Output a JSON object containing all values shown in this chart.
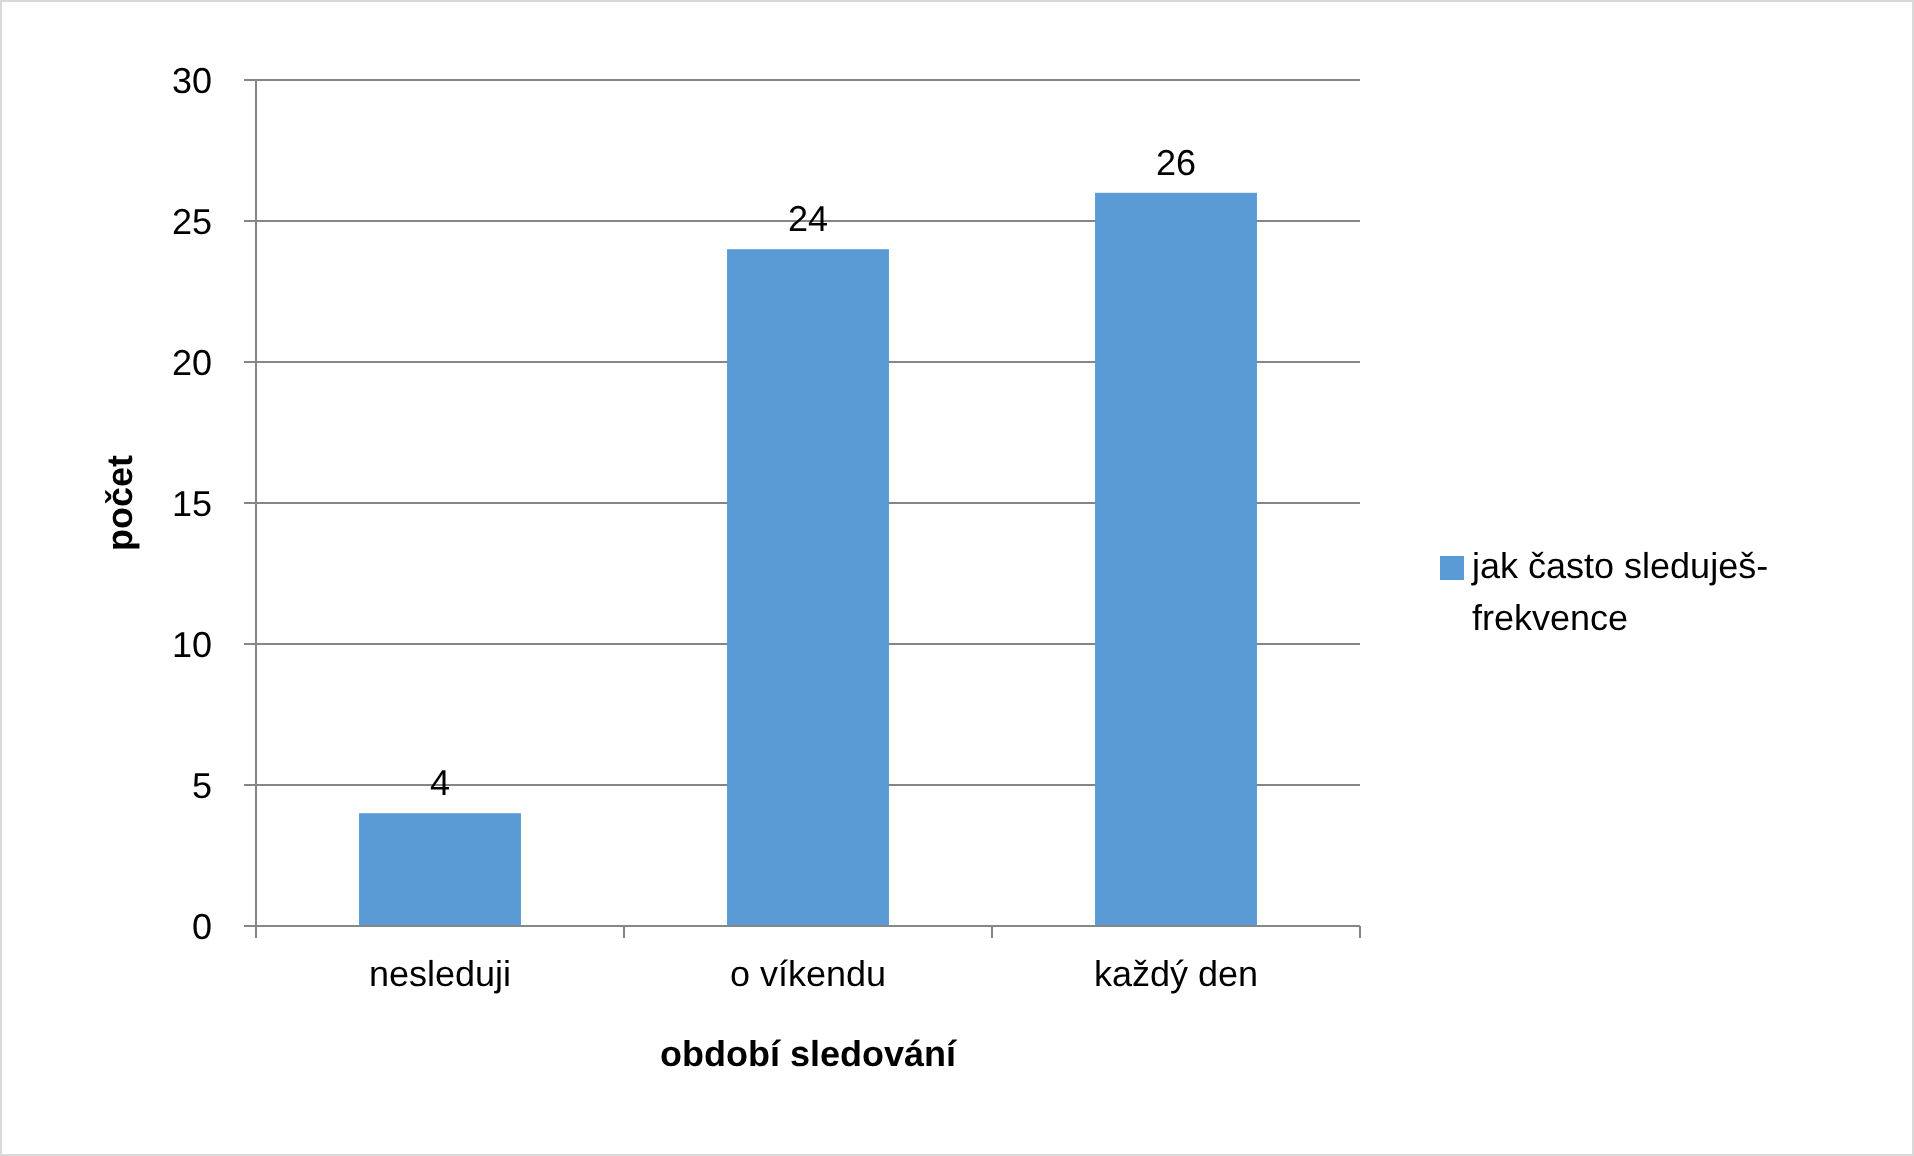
{
  "chart_data": {
    "type": "bar",
    "xlabel": "období sledování",
    "ylabel": "počet",
    "categories": [
      "nesleduji",
      "o víkendu",
      "každý den"
    ],
    "series": [
      {
        "name": "jak často sleduješ-frekvence",
        "color": "#5b9bd5",
        "values": [
          4,
          24,
          26
        ]
      }
    ],
    "ylim": [
      0,
      30
    ],
    "yticks": [
      0,
      5,
      10,
      15,
      20,
      25,
      30
    ],
    "grid": "y",
    "legend": "right",
    "data_labels": true
  }
}
